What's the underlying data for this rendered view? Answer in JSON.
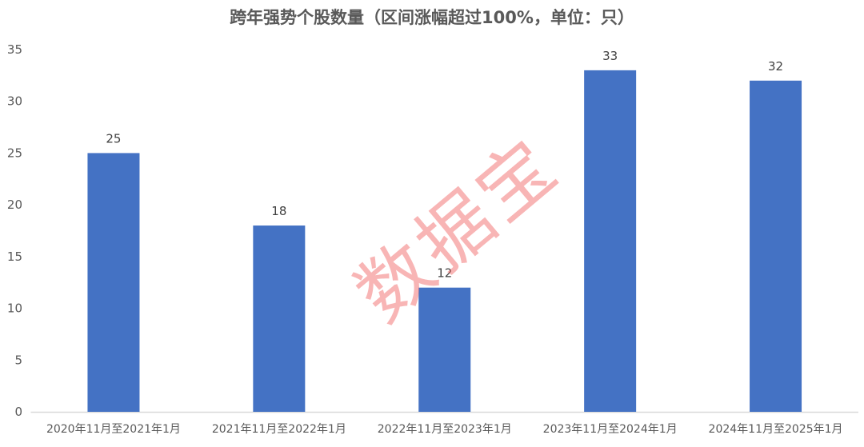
{
  "chart_data": {
    "type": "bar",
    "title": "跨年强势个股数量（区间涨幅超过100%，单位：只）",
    "categories": [
      "2020年11月至2021年1月",
      "2021年11月至2022年1月",
      "2022年11月至2023年1月",
      "2023年11月至2024年1月",
      "2024年11月至2025年1月"
    ],
    "values": [
      25,
      18,
      12,
      33,
      32
    ],
    "ylim": [
      0,
      35
    ],
    "yticks": [
      0,
      5,
      10,
      15,
      20,
      25,
      30,
      35
    ],
    "grid": false,
    "bar_color": "#4472C4",
    "data_labels": true
  },
  "watermark": "数据宝"
}
